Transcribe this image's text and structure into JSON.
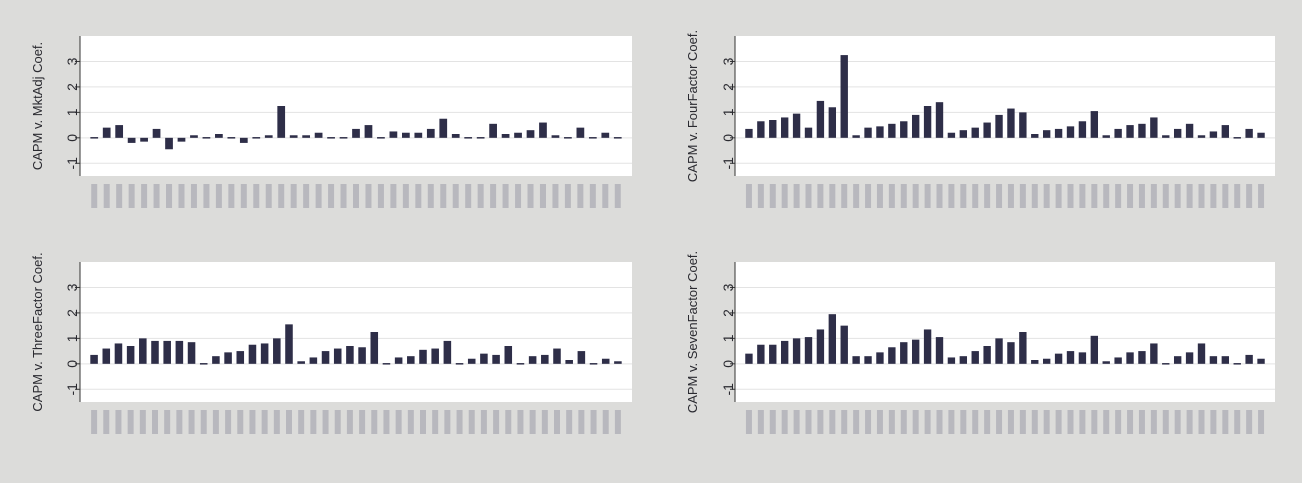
{
  "colors": {
    "bar": "#2e2e48",
    "panel_bg": "#ffffff",
    "page_bg": "#dcdcda",
    "grid": "#e3e3e3",
    "axis": "#333333"
  },
  "chart_data": [
    {
      "type": "bar",
      "ylabel": "CAPM v. MktAdj Coef.",
      "yticks": [
        -1,
        0,
        1,
        2,
        3
      ],
      "ylim": [
        -1.5,
        4
      ],
      "grid": true,
      "values": [
        0.05,
        0.4,
        0.5,
        -0.2,
        -0.15,
        0.35,
        -0.45,
        -0.15,
        0.1,
        0.05,
        0.15,
        0.0,
        -0.2,
        0.05,
        0.1,
        1.25,
        0.1,
        0.1,
        0.2,
        0.05,
        0.0,
        0.35,
        0.5,
        0.05,
        0.25,
        0.2,
        0.2,
        0.35,
        0.75,
        0.15,
        0.0,
        0.05,
        0.55,
        0.15,
        0.2,
        0.3,
        0.6,
        0.1,
        0.0,
        0.4,
        0.05,
        0.2,
        0.05
      ]
    },
    {
      "type": "bar",
      "ylabel": "CAPM v. FourFactor Coef.",
      "yticks": [
        -1,
        0,
        1,
        2,
        3
      ],
      "ylim": [
        -1.5,
        4
      ],
      "grid": true,
      "values": [
        0.35,
        0.65,
        0.7,
        0.8,
        0.95,
        0.4,
        1.45,
        1.2,
        3.25,
        0.1,
        0.4,
        0.45,
        0.55,
        0.65,
        0.9,
        1.25,
        1.4,
        0.2,
        0.3,
        0.4,
        0.6,
        0.9,
        1.15,
        1.0,
        0.15,
        0.3,
        0.35,
        0.45,
        0.65,
        1.05,
        0.1,
        0.35,
        0.5,
        0.55,
        0.8,
        0.1,
        0.35,
        0.55,
        0.1,
        0.25,
        0.5,
        0.05,
        0.35,
        0.2
      ]
    },
    {
      "type": "bar",
      "ylabel": "CAPM v. ThreeFactor Coef.",
      "yticks": [
        -1,
        0,
        1,
        2,
        3
      ],
      "ylim": [
        -1.5,
        4
      ],
      "grid": true,
      "values": [
        0.35,
        0.6,
        0.8,
        0.7,
        1.0,
        0.9,
        0.9,
        0.9,
        0.85,
        0.05,
        0.3,
        0.45,
        0.5,
        0.75,
        0.8,
        1.0,
        1.55,
        0.1,
        0.25,
        0.5,
        0.6,
        0.7,
        0.65,
        1.25,
        0.05,
        0.25,
        0.3,
        0.55,
        0.6,
        0.9,
        0.05,
        0.2,
        0.4,
        0.35,
        0.7,
        0.05,
        0.3,
        0.35,
        0.6,
        0.15,
        0.5,
        0.05,
        0.2,
        0.1
      ]
    },
    {
      "type": "bar",
      "ylabel": "CAPM v. SevenFactor Coef.",
      "yticks": [
        -1,
        0,
        1,
        2,
        3
      ],
      "ylim": [
        -1.5,
        4
      ],
      "grid": true,
      "values": [
        0.4,
        0.75,
        0.75,
        0.9,
        1.0,
        1.05,
        1.35,
        1.95,
        1.5,
        0.3,
        0.3,
        0.45,
        0.65,
        0.85,
        0.95,
        1.35,
        1.05,
        0.25,
        0.3,
        0.5,
        0.7,
        1.0,
        0.85,
        1.25,
        0.15,
        0.2,
        0.4,
        0.5,
        0.45,
        1.1,
        0.1,
        0.25,
        0.45,
        0.5,
        0.8,
        0.05,
        0.3,
        0.45,
        0.8,
        0.3,
        0.3,
        0.05,
        0.35,
        0.2
      ]
    }
  ]
}
